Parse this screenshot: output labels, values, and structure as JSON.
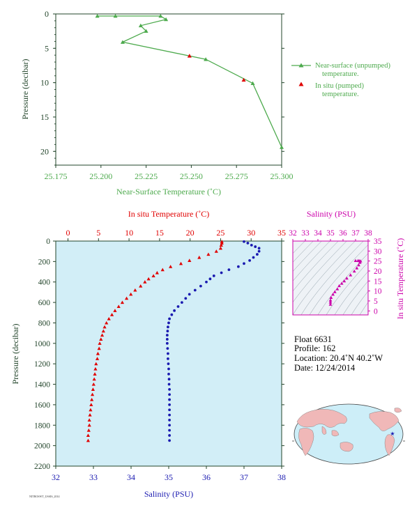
{
  "chart_data": [
    {
      "type": "line",
      "xlabel": "Near-Surface Temperature (˚C)",
      "ylabel": "Pressure (decibar)",
      "xlim": [
        25.175,
        25.3
      ],
      "ylim": [
        0,
        22
      ],
      "y_inverted": true,
      "x_ticks": [
        "25.175",
        "25.200",
        "25.225",
        "25.250",
        "25.275",
        "25.300"
      ],
      "y_ticks": [
        "0",
        "5",
        "10",
        "15",
        "20"
      ],
      "color": "#4daa4d",
      "legend_placement": "right",
      "legend": [
        "Near-surface (unpumped) temperature.",
        "In situ (pumped) temperature."
      ],
      "series": [
        {
          "name": "Near-surface (unpumped) temperature.",
          "marker": "triangle",
          "color": "#4daa4d",
          "points": [
            [
              25.198,
              0.3
            ],
            [
              25.208,
              0.3
            ],
            [
              25.233,
              0.3
            ],
            [
              25.236,
              0.8
            ],
            [
              25.222,
              1.7
            ],
            [
              25.225,
              2.5
            ],
            [
              25.212,
              4.1
            ],
            [
              25.258,
              6.6
            ],
            [
              25.284,
              10.1
            ],
            [
              25.3,
              19.4
            ]
          ]
        },
        {
          "name": "In situ (pumped) temperature.",
          "marker": "triangle",
          "color": "#e00000",
          "points": [
            [
              25.249,
              6.1
            ],
            [
              25.279,
              9.6
            ]
          ]
        }
      ]
    },
    {
      "type": "scatter",
      "x_top_label": "In situ Temperature (˚C)",
      "x_bottom_label": "Salinity (PSU)",
      "ylabel": "Pressure (decibar)",
      "top_xlim": [
        -2,
        35
      ],
      "bottom_xlim": [
        32,
        38
      ],
      "ylim": [
        0,
        2200
      ],
      "y_inverted": true,
      "top_ticks": [
        "0",
        "5",
        "10",
        "15",
        "20",
        "25",
        "30",
        "35"
      ],
      "bottom_ticks": [
        "32",
        "33",
        "34",
        "35",
        "36",
        "37",
        "38"
      ],
      "y_ticks": [
        "0",
        "200",
        "400",
        "600",
        "800",
        "1000",
        "1200",
        "1400",
        "1600",
        "1800",
        "2000",
        "2200"
      ],
      "background": "#d2eef7",
      "series": [
        {
          "name": "In situ Temperature (˚C)",
          "axis": "top",
          "marker": "triangle",
          "color": "#e00000",
          "points": [
            [
              25.2,
              5
            ],
            [
              25.2,
              20
            ],
            [
              25.1,
              40
            ],
            [
              25.0,
              70
            ],
            [
              24.3,
              100
            ],
            [
              23.0,
              130
            ],
            [
              21.5,
              160
            ],
            [
              19.9,
              190
            ],
            [
              18.5,
              220
            ],
            [
              16.8,
              250
            ],
            [
              15.5,
              280
            ],
            [
              14.6,
              310
            ],
            [
              14.0,
              340
            ],
            [
              13.2,
              370
            ],
            [
              12.6,
              400
            ],
            [
              11.9,
              440
            ],
            [
              11.0,
              480
            ],
            [
              10.3,
              520
            ],
            [
              9.6,
              560
            ],
            [
              8.9,
              600
            ],
            [
              8.3,
              640
            ],
            [
              7.7,
              680
            ],
            [
              7.2,
              720
            ],
            [
              6.7,
              760
            ],
            [
              6.3,
              800
            ],
            [
              6.0,
              840
            ],
            [
              5.8,
              880
            ],
            [
              5.6,
              920
            ],
            [
              5.4,
              960
            ],
            [
              5.2,
              1000
            ],
            [
              5.1,
              1050
            ],
            [
              4.9,
              1100
            ],
            [
              4.8,
              1150
            ],
            [
              4.6,
              1200
            ],
            [
              4.5,
              1250
            ],
            [
              4.4,
              1300
            ],
            [
              4.3,
              1350
            ],
            [
              4.2,
              1400
            ],
            [
              4.1,
              1450
            ],
            [
              4.0,
              1500
            ],
            [
              3.9,
              1550
            ],
            [
              3.8,
              1600
            ],
            [
              3.7,
              1650
            ],
            [
              3.6,
              1700
            ],
            [
              3.5,
              1750
            ],
            [
              3.5,
              1800
            ],
            [
              3.4,
              1850
            ],
            [
              3.3,
              1900
            ],
            [
              3.3,
              1950
            ]
          ]
        },
        {
          "name": "Salinity (PSU)",
          "axis": "bottom",
          "marker": "dot",
          "color": "#1a1ab0",
          "points": [
            [
              37.0,
              5
            ],
            [
              37.1,
              20
            ],
            [
              37.2,
              40
            ],
            [
              37.3,
              55
            ],
            [
              37.4,
              70
            ],
            [
              37.4,
              100
            ],
            [
              37.35,
              130
            ],
            [
              37.25,
              160
            ],
            [
              37.15,
              190
            ],
            [
              37.0,
              220
            ],
            [
              36.85,
              250
            ],
            [
              36.6,
              280
            ],
            [
              36.4,
              310
            ],
            [
              36.2,
              340
            ],
            [
              36.1,
              370
            ],
            [
              36.0,
              400
            ],
            [
              35.85,
              440
            ],
            [
              35.7,
              480
            ],
            [
              35.55,
              520
            ],
            [
              35.45,
              560
            ],
            [
              35.35,
              600
            ],
            [
              35.25,
              640
            ],
            [
              35.15,
              680
            ],
            [
              35.08,
              720
            ],
            [
              35.02,
              760
            ],
            [
              35.0,
              800
            ],
            [
              34.98,
              840
            ],
            [
              34.97,
              880
            ],
            [
              34.96,
              920
            ],
            [
              34.96,
              960
            ],
            [
              34.96,
              1000
            ],
            [
              34.97,
              1050
            ],
            [
              34.98,
              1100
            ],
            [
              34.98,
              1150
            ],
            [
              34.99,
              1200
            ],
            [
              35.0,
              1250
            ],
            [
              35.0,
              1300
            ],
            [
              35.01,
              1350
            ],
            [
              35.01,
              1400
            ],
            [
              35.02,
              1450
            ],
            [
              35.02,
              1500
            ],
            [
              35.02,
              1550
            ],
            [
              35.02,
              1600
            ],
            [
              35.02,
              1650
            ],
            [
              35.02,
              1700
            ],
            [
              35.02,
              1750
            ],
            [
              35.02,
              1800
            ],
            [
              35.02,
              1850
            ],
            [
              35.02,
              1900
            ],
            [
              35.02,
              1950
            ]
          ]
        }
      ]
    },
    {
      "type": "scatter",
      "xlabel": "Salinity (PSU)",
      "ylabel": "In situ Temperature (˚C)",
      "xlim": [
        32,
        38
      ],
      "ylim": [
        -2,
        35
      ],
      "x_ticks": [
        "32",
        "33",
        "34",
        "35",
        "36",
        "37",
        "38"
      ],
      "y_ticks": [
        "0",
        "5",
        "10",
        "15",
        "20",
        "25",
        "30",
        "35"
      ],
      "color": "#cc00aa",
      "points": [
        [
          35.0,
          3.3
        ],
        [
          35.0,
          4.4
        ],
        [
          35.0,
          5.4
        ],
        [
          35.05,
          6.7
        ],
        [
          35.2,
          8.3
        ],
        [
          35.35,
          9.6
        ],
        [
          35.55,
          11.0
        ],
        [
          35.7,
          12.6
        ],
        [
          35.9,
          13.8
        ],
        [
          36.1,
          15.0
        ],
        [
          36.3,
          16.4
        ],
        [
          36.6,
          18.0
        ],
        [
          36.9,
          19.9
        ],
        [
          37.1,
          21.5
        ],
        [
          37.25,
          23.0
        ],
        [
          37.35,
          24.3
        ],
        [
          37.4,
          25.0
        ],
        [
          37.3,
          25.1
        ],
        [
          37.2,
          25.2
        ],
        [
          37.0,
          25.2
        ]
      ]
    }
  ],
  "info": {
    "float": "Float  6631",
    "profile": "Profile:  162",
    "location": "Location:  20.4˚N  40.2˚W",
    "date": "Date:  12/24/2014"
  },
  "map": {
    "land_color": "#f0b8b8",
    "ocean_color": "#cdeef8",
    "marker": "★"
  },
  "colors": {
    "green": "#4daa4d",
    "red": "#e00000",
    "blue": "#1a1ab0",
    "magenta": "#cc00aa",
    "panel": "#d2eef7",
    "axis": "#22442a"
  }
}
